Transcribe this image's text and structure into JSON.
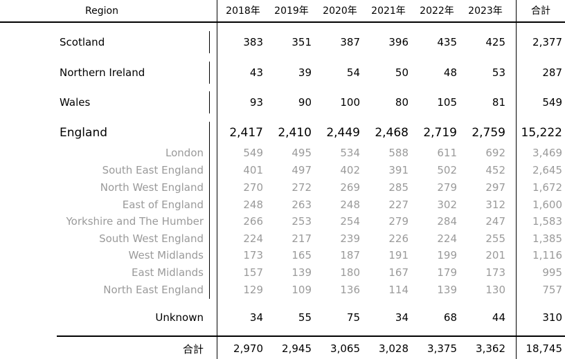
{
  "header": {
    "region": "Region",
    "years": [
      "2018年",
      "2019年",
      "2020年",
      "2021年",
      "2022年",
      "2023年"
    ],
    "total": "合計"
  },
  "nations": [
    {
      "name": "Scotland",
      "values": [
        "383",
        "351",
        "387",
        "396",
        "435",
        "425"
      ],
      "total": "2,377"
    },
    {
      "name": "Northern Ireland",
      "values": [
        "43",
        "39",
        "54",
        "50",
        "48",
        "53"
      ],
      "total": "287"
    },
    {
      "name": "Wales",
      "values": [
        "93",
        "90",
        "100",
        "80",
        "105",
        "81"
      ],
      "total": "549"
    }
  ],
  "england": {
    "name": "England",
    "values": [
      "2,417",
      "2,410",
      "2,449",
      "2,468",
      "2,719",
      "2,759"
    ],
    "total": "15,222"
  },
  "england_regions": [
    {
      "name": "London",
      "values": [
        "549",
        "495",
        "534",
        "588",
        "611",
        "692"
      ],
      "total": "3,469"
    },
    {
      "name": "South East England",
      "values": [
        "401",
        "497",
        "402",
        "391",
        "502",
        "452"
      ],
      "total": "2,645"
    },
    {
      "name": "North West England",
      "values": [
        "270",
        "272",
        "269",
        "285",
        "279",
        "297"
      ],
      "total": "1,672"
    },
    {
      "name": "East of England",
      "values": [
        "248",
        "263",
        "248",
        "227",
        "302",
        "312"
      ],
      "total": "1,600"
    },
    {
      "name": "Yorkshire and The Humber",
      "values": [
        "266",
        "253",
        "254",
        "279",
        "284",
        "247"
      ],
      "total": "1,583"
    },
    {
      "name": "South West England",
      "values": [
        "224",
        "217",
        "239",
        "226",
        "224",
        "255"
      ],
      "total": "1,385"
    },
    {
      "name": "West Midlands",
      "values": [
        "173",
        "165",
        "187",
        "191",
        "199",
        "201"
      ],
      "total": "1,116"
    },
    {
      "name": "East Midlands",
      "values": [
        "157",
        "139",
        "180",
        "167",
        "179",
        "173"
      ],
      "total": "995"
    },
    {
      "name": "North East England",
      "values": [
        "129",
        "109",
        "136",
        "114",
        "139",
        "130"
      ],
      "total": "757"
    }
  ],
  "unknown": {
    "name": "Unknown",
    "values": [
      "34",
      "55",
      "75",
      "34",
      "68",
      "44"
    ],
    "total": "310"
  },
  "grand_total": {
    "name": "合計",
    "values": [
      "2,970",
      "2,945",
      "3,065",
      "3,028",
      "3,375",
      "3,362"
    ],
    "total": "18,745"
  }
}
